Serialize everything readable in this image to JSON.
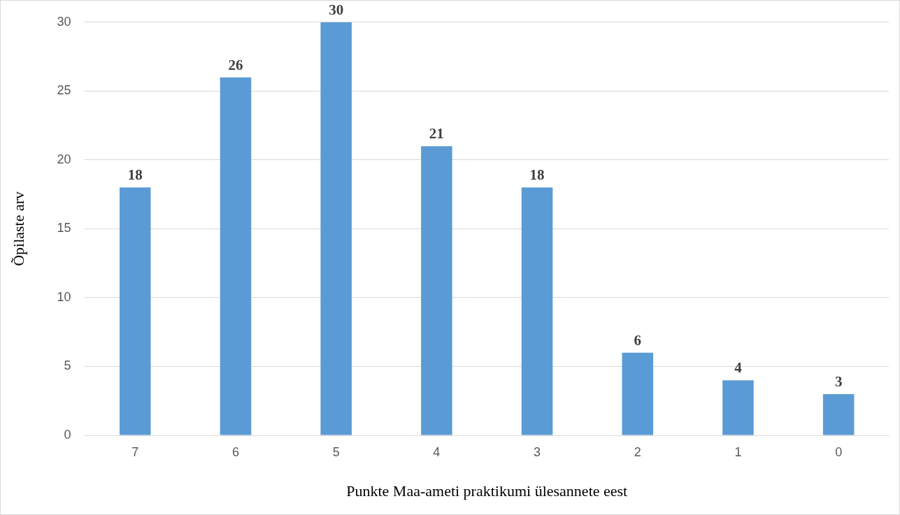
{
  "chart_data": {
    "type": "bar",
    "xlabel": "Punkte Maa-ameti praktikumi ülesannete eest",
    "ylabel": "Õpilaste arv",
    "categories": [
      "7",
      "6",
      "5",
      "4",
      "3",
      "2",
      "1",
      "0"
    ],
    "values": [
      18,
      26,
      30,
      21,
      18,
      6,
      4,
      3
    ],
    "color": "#5b9bd5",
    "ylim": [
      0,
      30
    ],
    "yticks": [
      0,
      5,
      10,
      15,
      20,
      25,
      30
    ],
    "grid": "y",
    "data_labels": true,
    "legend": false
  }
}
